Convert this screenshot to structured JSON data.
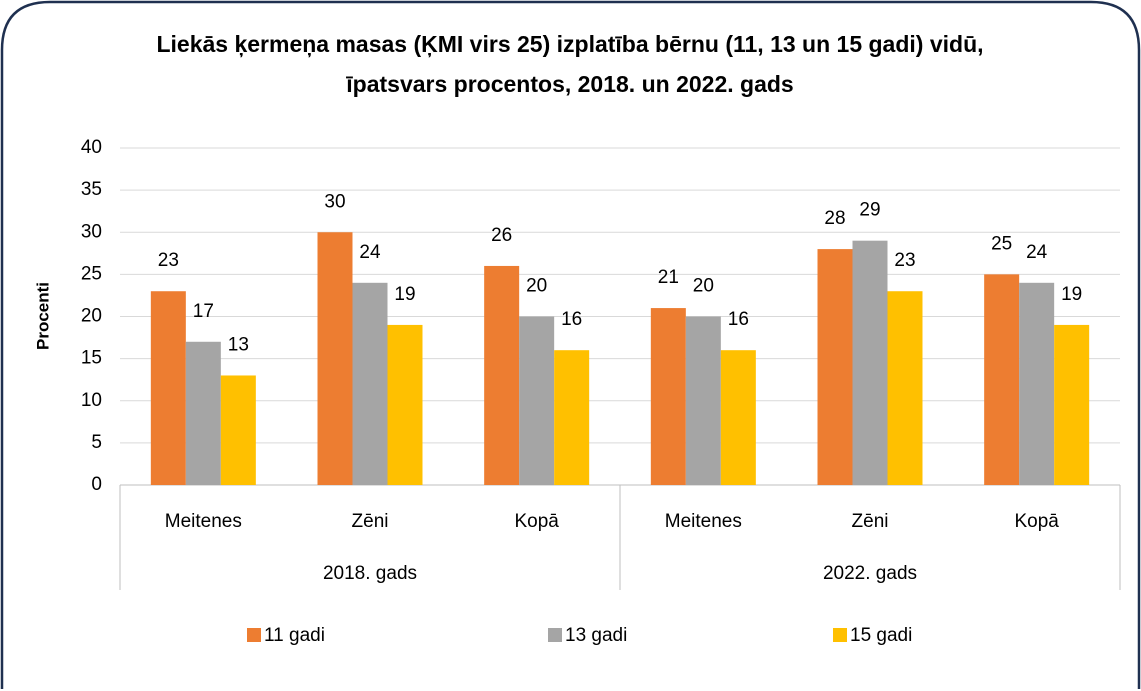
{
  "chart_data": {
    "type": "bar",
    "title": [
      "Liekās ķermeņa masas (ĶMI virs 25) izplatība bērnu (11, 13 un 15 gadi) vidū,",
      "īpatsvars procentos, 2018. un 2022. gads"
    ],
    "y_label": "Procenti",
    "groups": [
      {
        "name": "2018. gads",
        "categories": [
          "Meitenes",
          "Zēni",
          "Kopā"
        ]
      },
      {
        "name": "2022. gads",
        "categories": [
          "Meitenes",
          "Zēni",
          "Kopā"
        ]
      }
    ],
    "series": [
      {
        "name": "11 gadi",
        "color": "#ed7d31",
        "values": [
          23,
          30,
          26,
          21,
          28,
          25
        ]
      },
      {
        "name": "13 gadi",
        "color": "#a5a5a5",
        "values": [
          17,
          24,
          20,
          20,
          29,
          24
        ]
      },
      {
        "name": "15 gadi",
        "color": "#ffc000",
        "values": [
          13,
          19,
          16,
          16,
          23,
          19
        ]
      }
    ],
    "ylim": [
      0,
      40
    ],
    "yticks": [
      0,
      5,
      10,
      15,
      20,
      25,
      30,
      35,
      40
    ],
    "grid": true,
    "legend": "bottom"
  }
}
